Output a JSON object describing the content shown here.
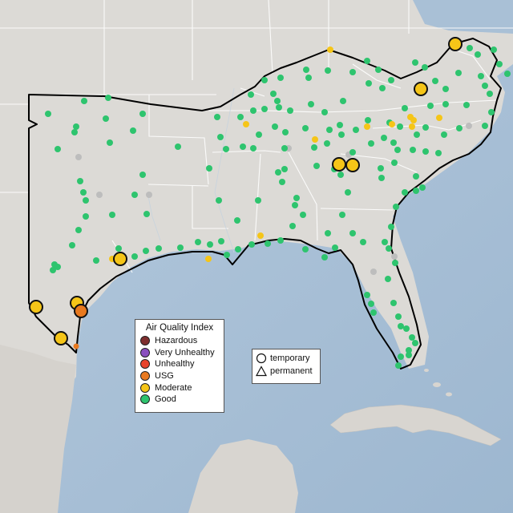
{
  "legend_aqi": {
    "title": "Air Quality Index",
    "categories": [
      {
        "label": "Hazardous",
        "color": "#7e2e2e"
      },
      {
        "label": "Very Unhealthy",
        "color": "#8a4fbf"
      },
      {
        "label": "Unhealthy",
        "color": "#e8432b"
      },
      {
        "label": "USG",
        "color": "#e8791f"
      },
      {
        "label": "Moderate",
        "color": "#f5c518"
      },
      {
        "label": "Good",
        "color": "#2ec46e"
      }
    ]
  },
  "legend_monitor": {
    "temporary": "temporary",
    "permanent": "permanent"
  },
  "colors": {
    "land": "#dcdad6",
    "water": "#a9c0d6",
    "state_border": "#ffffff",
    "coast": "#000000",
    "no_data": "#bdbdbd"
  }
}
